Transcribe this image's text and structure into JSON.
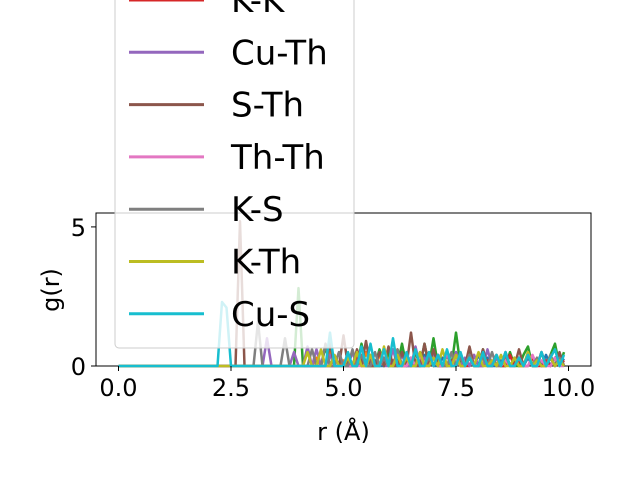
{
  "chart_data": {
    "type": "line",
    "xlabel": "r (Å)",
    "ylabel": "g(r)",
    "xlim": [
      -0.5,
      10.5
    ],
    "ylim": [
      0,
      5.5
    ],
    "xticks": [
      0.0,
      2.5,
      5.0,
      7.5,
      10.0
    ],
    "xtick_labels": [
      "0.0",
      "2.5",
      "5.0",
      "7.5",
      "10.0"
    ],
    "yticks": [
      0,
      5
    ],
    "ytick_labels": [
      "0",
      "5"
    ],
    "grid": false,
    "legend_placement": "upper-left (overflowing the axes)",
    "x": [
      0.0,
      0.1,
      0.2,
      0.3,
      0.4,
      0.5,
      0.6,
      0.7,
      0.8,
      0.9,
      1.0,
      1.1,
      1.2,
      1.3,
      1.4,
      1.5,
      1.6,
      1.7,
      1.8,
      1.9,
      2.0,
      2.1,
      2.2,
      2.3,
      2.4,
      2.5,
      2.6,
      2.7,
      2.8,
      2.9,
      3.0,
      3.1,
      3.2,
      3.3,
      3.4,
      3.5,
      3.6,
      3.7,
      3.8,
      3.9,
      4.0,
      4.1,
      4.2,
      4.3,
      4.4,
      4.5,
      4.6,
      4.7,
      4.8,
      4.9,
      5.0,
      5.1,
      5.2,
      5.3,
      5.4,
      5.5,
      5.6,
      5.7,
      5.8,
      5.9,
      6.0,
      6.1,
      6.2,
      6.3,
      6.4,
      6.5,
      6.6,
      6.7,
      6.8,
      6.9,
      7.0,
      7.1,
      7.2,
      7.3,
      7.4,
      7.5,
      7.6,
      7.7,
      7.8,
      7.9,
      8.0,
      8.1,
      8.2,
      8.3,
      8.4,
      8.5,
      8.6,
      8.7,
      8.8,
      8.9,
      9.0,
      9.1,
      9.2,
      9.3,
      9.4,
      9.5,
      9.6,
      9.7,
      9.8,
      9.9
    ],
    "series": [
      {
        "name": "",
        "color": "#1f77b4",
        "values": [
          0,
          0,
          0,
          0,
          0,
          0,
          0,
          0,
          0,
          0,
          0,
          0,
          0,
          0,
          0,
          0,
          0,
          0,
          0,
          0,
          0,
          0,
          0,
          0,
          0,
          0,
          0,
          0,
          0,
          0,
          0,
          0,
          0,
          0,
          0,
          0,
          0,
          0,
          0,
          0,
          0,
          0,
          0,
          0,
          0,
          0,
          0,
          0,
          0,
          0,
          0,
          0.2,
          0,
          0,
          0.3,
          0,
          0,
          0.2,
          0,
          0,
          0.4,
          0,
          0.2,
          0,
          0,
          0.3,
          0,
          0,
          0.4,
          0.2,
          0,
          0,
          0.3,
          0,
          0,
          0.5,
          0,
          0,
          0.3,
          0,
          0.4,
          0,
          0.3,
          0,
          0,
          0.2,
          0,
          0.4,
          0,
          0.3,
          0,
          0.3,
          0,
          0.2,
          0,
          0.4,
          0,
          0.3,
          0.4,
          0.2
        ]
      },
      {
        "name": "",
        "color": "#ff7f0e",
        "values": [
          0,
          0,
          0,
          0,
          0,
          0,
          0,
          0,
          0,
          0,
          0,
          0,
          0,
          0,
          0,
          0,
          0,
          0,
          0,
          0,
          0,
          0,
          0,
          0,
          0,
          0,
          0,
          0,
          0,
          0,
          0,
          0,
          0,
          0,
          0,
          0,
          0,
          0,
          0,
          0,
          0,
          0,
          0,
          0,
          0.3,
          0,
          0,
          0.5,
          0,
          0,
          0.2,
          0,
          0,
          0.3,
          0,
          0.5,
          0,
          0,
          0.4,
          0,
          0.3,
          0,
          0.6,
          0,
          0,
          0.3,
          0,
          0.2,
          0,
          0.5,
          0,
          0.3,
          0,
          0.4,
          0,
          0,
          0.2,
          0,
          0.3,
          0,
          0,
          0.5,
          0,
          0.2,
          0,
          0,
          0.3,
          0,
          0.2,
          0,
          0,
          0.4,
          0,
          0.2,
          0,
          0,
          0.3,
          0,
          0.2,
          0
        ]
      },
      {
        "name": "",
        "color": "#2ca02c",
        "values": [
          0,
          0,
          0,
          0,
          0,
          0,
          0,
          0,
          0,
          0,
          0,
          0,
          0,
          0,
          0,
          0,
          0,
          0,
          0,
          0,
          0,
          0,
          0,
          0,
          0,
          0,
          0,
          0,
          0,
          0,
          0,
          0,
          0,
          0,
          0,
          0,
          0,
          0,
          0,
          0,
          2.8,
          0,
          0,
          0,
          0,
          0,
          0.7,
          0,
          0,
          0,
          0,
          0,
          0,
          0,
          0.8,
          0,
          0,
          0,
          0.6,
          0,
          0.5,
          0,
          0,
          0.8,
          0,
          0,
          0.5,
          0,
          0.8,
          0,
          1.0,
          0,
          0,
          0.4,
          0,
          1.2,
          0,
          0,
          0.5,
          0,
          0,
          0.6,
          0,
          0,
          0.4,
          0,
          0,
          0.5,
          0,
          0,
          0.4,
          0.7,
          0,
          0,
          0.5,
          0,
          0.4,
          0.8,
          0,
          0.5
        ]
      },
      {
        "name": "K-K",
        "color": "#d62728",
        "values": [
          0,
          0,
          0,
          0,
          0,
          0,
          0,
          0,
          0,
          0,
          0,
          0,
          0,
          0,
          0,
          0,
          0,
          0,
          0,
          0,
          0,
          0,
          0,
          0,
          0,
          0,
          0,
          0,
          0,
          0,
          0,
          0,
          0,
          0,
          0,
          0,
          0,
          0,
          0,
          0,
          0,
          0,
          0,
          0,
          0,
          0,
          0,
          0,
          0,
          0,
          0,
          0,
          0,
          0.3,
          0,
          0,
          0.4,
          0,
          0,
          0.3,
          0,
          0.2,
          0,
          0,
          0.3,
          0,
          0.2,
          0,
          0,
          0.3,
          0,
          0.4,
          0,
          0,
          0.2,
          0,
          0.3,
          0,
          0,
          0.4,
          0,
          0,
          0.2,
          0,
          0.3,
          0,
          0,
          0.4,
          0,
          0.2,
          0,
          0,
          0.3,
          0,
          0,
          0.2,
          0,
          0.3,
          0,
          0.2
        ]
      },
      {
        "name": "Cu-Th",
        "color": "#9467bd",
        "values": [
          0,
          0,
          0,
          0,
          0,
          0,
          0,
          0,
          0,
          0,
          0,
          0,
          0,
          0,
          0,
          0,
          0,
          0,
          0,
          0,
          0,
          0,
          0,
          0,
          0,
          0,
          0,
          0,
          0,
          0,
          0,
          0,
          0,
          1.0,
          0,
          0,
          0,
          0,
          0,
          0.5,
          0,
          0,
          0.7,
          0,
          0.6,
          0,
          0,
          0.4,
          0,
          0.5,
          0,
          0,
          0.5,
          0,
          0.4,
          0,
          0.3,
          0,
          0.5,
          0,
          0,
          0.6,
          0,
          0.4,
          0,
          0,
          0.7,
          0,
          0.3,
          0,
          0.5,
          0,
          0,
          0.4,
          0,
          0.5,
          0,
          0.3,
          0,
          0.4,
          0,
          0,
          0.6,
          0,
          0.3,
          0,
          0.5,
          0,
          0,
          0.3,
          0,
          0.4,
          0,
          0,
          0.5,
          0,
          0.3,
          0,
          0.4,
          0
        ]
      },
      {
        "name": "S-Th",
        "color": "#8c564b",
        "values": [
          0,
          0,
          0,
          0,
          0,
          0,
          0,
          0,
          0,
          0,
          0,
          0,
          0,
          0,
          0,
          0,
          0,
          0,
          0,
          0,
          0,
          0,
          0,
          0,
          0,
          0,
          0,
          5.2,
          0,
          0,
          0,
          0,
          0,
          0,
          0,
          0,
          0,
          0,
          0,
          0,
          0,
          0,
          0,
          0,
          0,
          0,
          0,
          0.8,
          0,
          0,
          1.1,
          0,
          0,
          0.6,
          0,
          0.9,
          0,
          0,
          0.5,
          0,
          0.7,
          0,
          0,
          0.5,
          0,
          1.2,
          0,
          0,
          0.8,
          0,
          0.6,
          0,
          0,
          0.5,
          0,
          0.4,
          0,
          0,
          0.7,
          0,
          0,
          0.6,
          0,
          0,
          0.4,
          0,
          0.5,
          0,
          0,
          0.6,
          0,
          0.4,
          0,
          0,
          0.5,
          0,
          0.3,
          0,
          0.5,
          0
        ]
      },
      {
        "name": "Th-Th",
        "color": "#e377c2",
        "values": [
          0,
          0,
          0,
          0,
          0,
          0,
          0,
          0,
          0,
          0,
          0,
          0,
          0,
          0,
          0,
          0,
          0,
          0,
          0,
          0,
          0,
          0,
          0,
          0,
          0,
          0,
          0,
          0,
          0,
          0,
          0,
          0,
          0,
          0,
          0,
          0,
          0,
          0,
          0,
          0,
          0,
          0,
          0,
          0,
          0,
          0,
          0,
          0,
          0,
          0,
          0,
          0,
          0,
          0,
          0,
          0,
          0.4,
          0,
          0,
          0.3,
          0,
          0,
          0.5,
          0,
          0,
          0.3,
          0,
          0.4,
          0,
          0,
          0.3,
          0,
          0,
          0.5,
          0,
          0.2,
          0,
          0,
          0.4,
          0,
          0,
          0.3,
          0,
          0,
          0.4,
          0,
          0.2,
          0,
          0,
          0.3,
          0,
          0,
          0.4,
          0,
          0.2,
          0,
          0,
          0.3,
          0,
          0
        ]
      },
      {
        "name": "K-S",
        "color": "#7f7f7f",
        "values": [
          0,
          0,
          0,
          0,
          0,
          0,
          0,
          0,
          0,
          0,
          0,
          0,
          0,
          0,
          0,
          0,
          0,
          0,
          0,
          0,
          0,
          0,
          0,
          0,
          0,
          0,
          0,
          0,
          0,
          0,
          0,
          1.6,
          0,
          0,
          0,
          0,
          0,
          1.0,
          0,
          0,
          0,
          0,
          0,
          0.6,
          0,
          0,
          0.8,
          0,
          0,
          0.5,
          0,
          0,
          0.6,
          0,
          0.4,
          0,
          0,
          0.5,
          0,
          0.3,
          0,
          0,
          0.6,
          0,
          0.4,
          0,
          0,
          0.5,
          0,
          0.3,
          0,
          0.4,
          0,
          0,
          0.5,
          0,
          0.3,
          0,
          0.4,
          0,
          0,
          0.3,
          0,
          0.5,
          0,
          0,
          0.4,
          0,
          0.3,
          0,
          0,
          0.5,
          0,
          0.3,
          0,
          0,
          0.4,
          0,
          0.3,
          0
        ]
      },
      {
        "name": "K-Th",
        "color": "#bcbd22",
        "values": [
          0,
          0,
          0,
          0,
          0,
          0,
          0,
          0,
          0,
          0,
          0,
          0,
          0,
          0,
          0,
          0,
          0,
          0,
          0,
          0,
          0,
          0,
          0,
          0,
          0,
          0,
          0,
          0,
          0,
          0,
          0,
          0,
          0,
          0,
          0,
          0,
          0,
          0,
          0,
          0,
          0,
          0,
          0.5,
          0,
          0,
          0.6,
          0,
          0,
          0.4,
          0,
          0,
          0.3,
          0,
          0.5,
          0,
          0,
          0.4,
          0,
          0,
          0.7,
          0,
          0,
          0.4,
          0,
          0.3,
          0,
          0,
          0.5,
          0,
          0,
          0.3,
          0,
          0.6,
          0,
          0,
          0.4,
          0,
          0,
          0.3,
          0,
          0.5,
          0,
          0,
          0.2,
          0,
          0.4,
          0,
          0,
          0.3,
          0,
          0,
          0.5,
          0,
          0.2,
          0,
          0,
          0.3,
          0,
          0.2,
          0
        ]
      },
      {
        "name": "Cu-S",
        "color": "#17becf",
        "values": [
          0,
          0,
          0,
          0,
          0,
          0,
          0,
          0,
          0,
          0,
          0,
          0,
          0,
          0,
          0,
          0,
          0,
          0,
          0,
          0,
          0,
          0,
          0,
          2.3,
          2.1,
          0,
          0,
          0,
          0,
          0,
          0,
          0,
          0,
          0,
          0,
          0,
          0,
          0,
          0,
          0,
          0,
          0,
          0,
          0,
          0,
          0,
          0,
          1.2,
          0,
          0,
          0,
          0.5,
          0,
          0,
          0.7,
          0,
          0.8,
          0,
          0,
          0.6,
          0,
          1.0,
          0,
          0,
          0.5,
          0,
          0.6,
          0,
          0,
          0.5,
          0,
          0.4,
          0,
          0.6,
          0,
          0,
          0.5,
          0,
          0.3,
          0,
          0,
          0.5,
          0,
          0,
          0.4,
          0,
          0.5,
          0,
          0,
          0.3,
          0,
          0.4,
          0,
          0,
          0.5,
          0,
          0.3,
          0.6,
          0,
          0.4
        ]
      }
    ]
  }
}
